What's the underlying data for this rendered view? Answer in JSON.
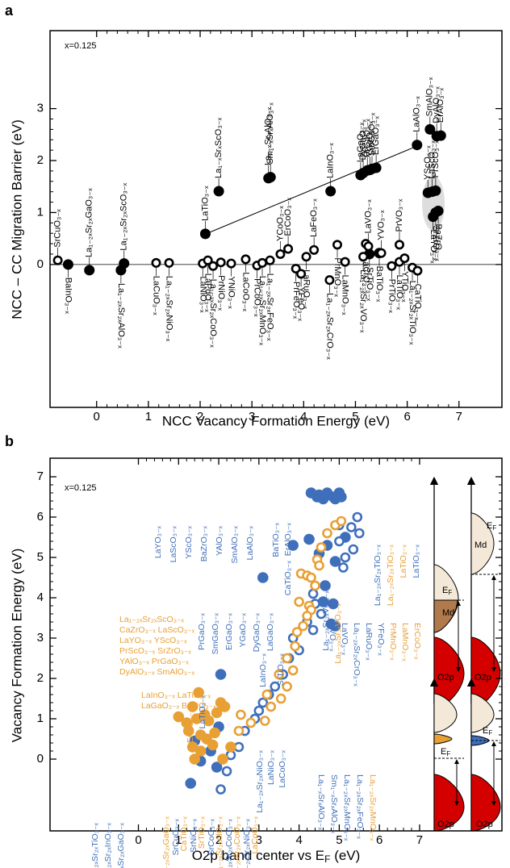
{
  "chart_data": [
    {
      "type": "scatter",
      "panel_label": "a",
      "annotation": "x=0.125",
      "xlabel": "NCC Vacancy Formation Energy (eV)",
      "ylabel": "NCC – CC Migration Barrier (eV)",
      "xlim": [
        -0.9,
        7.83
      ],
      "ylim": [
        -2.75,
        4.5
      ],
      "xticks": [
        0,
        1,
        2,
        3,
        4,
        5,
        6,
        7
      ],
      "yticks": [
        0,
        1,
        2,
        3
      ],
      "series": [
        {
          "marker": "filled",
          "color": "#000000",
          "x": [
            -0.55,
            -0.14,
            0.53,
            0.47,
            2.1,
            2.36,
            3.32,
            3.36,
            4.52,
            5.1,
            5.15,
            5.23,
            5.28,
            5.32,
            5.4,
            6.19,
            6.44,
            6.57,
            6.65,
            6.4,
            6.48,
            6.55,
            6.5,
            6.55,
            6.6,
            5.27,
            5.46
          ],
          "values": [
            0.0,
            -0.11,
            0.02,
            -0.11,
            0.59,
            1.41,
            1.66,
            1.68,
            1.41,
            1.72,
            1.76,
            1.81,
            1.82,
            1.84,
            1.86,
            2.3,
            2.6,
            2.47,
            2.48,
            1.38,
            1.4,
            1.42,
            0.92,
            1.0,
            1.03,
            0.2,
            0.22
          ],
          "labels": [
            "BaInO₃₋ₓ",
            "La₁₋₂ₓSr₂ₓGaO₃₋ₓ",
            "La₁₋₂ₓSr₂ₓScO₃₋ₓ",
            "La₁₋₂ₓSr₂ₓAlO₃₋ₓ",
            "LaTiO₃₋ₓ",
            "La₁₋ₓSrₓScO₃₋ₓ",
            "La₁₋ₓSrₓAlO₃₋ₓ",
            "Sm₁₋ₓSrₓAlO₃₋ₓ",
            "LaInO₃₋ₓ",
            "LaGaO₃₋ₓ",
            "DyGaO₃₋ₓ",
            "PrGaO₃₋ₓ",
            "YGaO₃₋ₓ",
            "SmGaO₃₋ₓ",
            "ErGaO₃₋ₓ",
            "LaAlO₃₋ₓ",
            "SmAlO₃₋ₓ",
            "DyAlO₃₋ₓ",
            "ErAlO₃₋ₓ",
            "YScO₃₋ₓ",
            "LaScO₃₋ₓ",
            "PrScO₃₋ₓ",
            "LaYO₃₋ₓ",
            "SrZrO₃₋ₓ",
            "BaZrO₃₋ₓ",
            "SrTiO₃₋ₓ",
            "BaTiO₃₋ₓ"
          ]
        },
        {
          "marker": "open",
          "color": "#000000",
          "x": [
            -0.75,
            1.15,
            1.4,
            2.05,
            2.15,
            2.25,
            2.4,
            2.6,
            2.88,
            3.1,
            3.2,
            3.35,
            3.55,
            3.7,
            4.2,
            3.85,
            3.95,
            4.05,
            4.5,
            4.65,
            4.8,
            5.15,
            5.2,
            5.25,
            5.5,
            5.85,
            5.7,
            5.85,
            5.95,
            6.1,
            6.2
          ],
          "values": [
            0.08,
            0.03,
            0.03,
            0.02,
            0.08,
            -0.03,
            0.04,
            0.02,
            0.1,
            -0.02,
            0.03,
            0.08,
            0.2,
            0.3,
            0.28,
            -0.08,
            -0.18,
            0.15,
            -0.3,
            0.38,
            0.05,
            0.15,
            0.4,
            0.35,
            0.22,
            0.38,
            -0.03,
            0.05,
            0.12,
            -0.06,
            -0.12
          ],
          "labels": [
            "SrCuO₃₋ₓ",
            "LaCuO₃₋ₓ",
            "La₁₋₂ₓSr₂ₓNiO₃₋ₓ",
            "LaNiO₃₋ₓ",
            "LaPdO₃₋ₓ",
            "La₁₋₂ₓSr₂ₓCoO₃₋ₓ",
            "PrNiO₃₋ₓ",
            "YNiO₃₋ₓ",
            "LaCoO₃₋ₓ",
            "PrCoO₃₋ₓ",
            "La₁₋₂ₓSr₂ₓMnO₃₋ₓ",
            "La₁₋₂ₓSr₂ₓFeO₃₋ₓ",
            "YCoO₃₋ₓ",
            "ErCoO₃₋ₓ",
            "LaFeO₃₋ₓ",
            "PrFeO₃₋ₓ",
            "YFeO₃₋ₓ",
            "LaRuO₃₋ₓ",
            "La₁₋₂ₓSr₂ₓCrO₃₋ₓ",
            "PrMnO₃₋ₓ",
            "LaMnO₃₋ₓ",
            "La₁₋₂ₓSr₂ₓVO₃₋ₓ",
            "LaCrO₃₋ₓ",
            "LaVO₃₋ₓ",
            "YVO₃₋ₓ",
            "PrVO₃₋ₓ",
            "PrTiO₃₋ₓ",
            "LaTiO₃₋ₓ",
            "YTiO₃₋ₓ",
            "La₁₋₂ₓSr₂ₓTiO₃₋ₓ",
            "CaTiO₃₋ₓ"
          ]
        }
      ]
    },
    {
      "type": "scatter",
      "panel_label": "b",
      "annotation": "x=0.125",
      "xlabel": "O2p band center vs E",
      "xlabel_sub": "F",
      "xlabel_unit": " (eV)",
      "ylabel": "Vacancy Formation Energy (eV)",
      "xlim": [
        -2.2,
        9.05
      ],
      "ylim": [
        -1.78,
        7.46
      ],
      "xticks": [
        0,
        1,
        2,
        3,
        4,
        5,
        6,
        7
      ],
      "yticks": [
        0,
        1,
        2,
        3,
        4,
        5,
        6,
        7
      ],
      "series": [
        {
          "marker": "filled",
          "color": "#3f6fba",
          "x": [
            4.3,
            4.45,
            4.5,
            4.6,
            4.7,
            4.85,
            5.0,
            5.05,
            4.9,
            3.85,
            4.25,
            4.5,
            4.7,
            4.9,
            5.15,
            3.1,
            4.65,
            4.85,
            4.9,
            4.8,
            4.6,
            2.05,
            1.4,
            1.55,
            1.95,
            1.3,
            1.8,
            2.0
          ],
          "values": [
            6.6,
            6.5,
            6.55,
            6.45,
            6.6,
            6.5,
            6.6,
            6.5,
            6.45,
            5.3,
            5.45,
            5.1,
            5.3,
            4.9,
            5.5,
            4.5,
            4.3,
            3.85,
            3.3,
            3.35,
            3.9,
            2.1,
            0.45,
            -0.05,
            -0.2,
            -0.6,
            0.2,
            0.8
          ]
        },
        {
          "marker": "open",
          "color": "#3f6fba",
          "x": [
            5.0,
            5.3,
            5.45,
            5.5,
            5.35,
            5.0,
            5.15,
            5.1,
            4.35,
            4.4,
            4.55,
            4.2,
            4.35,
            3.85,
            4.0,
            3.75,
            3.6,
            3.4,
            3.25,
            3.1,
            2.9,
            2.65,
            2.5,
            2.3,
            2.2,
            2.05,
            3.0
          ],
          "values": [
            5.8,
            5.75,
            6.0,
            5.6,
            5.2,
            5.4,
            5.0,
            4.75,
            4.1,
            3.85,
            3.6,
            3.4,
            3.2,
            3.0,
            2.7,
            2.5,
            2.1,
            1.8,
            1.6,
            1.4,
            1.0,
            0.7,
            0.3,
            0.1,
            -0.3,
            -0.75,
            1.2
          ]
        },
        {
          "marker": "filled",
          "color": "#e8a034",
          "x": [
            1.5,
            1.35,
            1.0,
            1.2,
            1.45,
            1.65,
            1.75,
            1.95,
            2.05,
            2.15,
            1.9,
            1.7,
            1.55,
            1.35,
            1.55,
            2.1,
            2.3,
            1.25,
            1.85,
            1.4
          ],
          "values": [
            1.65,
            1.3,
            1.05,
            0.9,
            1.0,
            1.1,
            0.95,
            1.15,
            1.4,
            1.3,
            0.65,
            0.5,
            0.6,
            0.3,
            0.2,
            0.0,
            0.3,
            0.7,
            0.35,
            0.0
          ]
        },
        {
          "marker": "open",
          "color": "#e8a034",
          "x": [
            4.05,
            4.2,
            4.3,
            4.4,
            4.45,
            4.55,
            4.7,
            4.9,
            5.05,
            4.25,
            4.1,
            4.3,
            4.2,
            3.95,
            3.9,
            3.7,
            3.85,
            3.5,
            3.7,
            3.2,
            3.3,
            3.15,
            2.8,
            2.5,
            2.55,
            3.55,
            4.0,
            4.5
          ],
          "values": [
            4.6,
            4.55,
            4.5,
            4.3,
            4.95,
            5.25,
            5.6,
            5.8,
            5.9,
            3.8,
            3.3,
            3.7,
            3.55,
            3.15,
            2.8,
            2.5,
            2.2,
            2.1,
            1.8,
            1.6,
            1.3,
            0.95,
            0.9,
            0.7,
            1.1,
            1.5,
            3.9,
            4.8
          ]
        }
      ],
      "label_groups": [
        {
          "color": "#3f6fba",
          "texts": [
            "LaYO₃₋ₓ",
            "LaScO₃₋ₓ",
            "YScO₃₋ₓ",
            "BaZrO₃₋ₓ",
            "YAlO₃₋ₓ",
            "SmAlO₃₋ₓ",
            "LaAlO₃₋ₓ"
          ]
        },
        {
          "color": "#3f6fba",
          "texts": [
            "PrGaO₃₋ₓ",
            "SmGaO₃₋ₓ",
            "ErGaO₃₋ₓ",
            "YGaO₃₋ₓ",
            "DyGaO₃₋ₓ",
            "LaGaO₃₋ₓ"
          ]
        },
        {
          "color": "#3f6fba",
          "texts": [
            "BaTiO₃₋ₓ",
            "ErAlO₃₋ₓ"
          ]
        },
        {
          "color": "#3f6fba",
          "texts": [
            "CaTiO₃₋ₓ"
          ]
        },
        {
          "color": "#3f6fba",
          "texts": [
            "LaInO₃₋ₓ",
            "SrTiO₃₋ₓ"
          ]
        },
        {
          "color": "#3f6fba",
          "texts": [
            "La₁₋₂ₓSr₂ₓNiO₃₋ₓ",
            "LaNiO₃₋ₓ",
            "LaCoO₃₋ₓ"
          ]
        },
        {
          "color": "#3f6fba",
          "texts": [
            "La₁₋ₓSrₓAlO₃₋ₓ",
            "Sm₁₋ₓSrₓAlO₃₋ₓ",
            "La₁₋₂ₓSr₂ₓMnO₃₋ₓ",
            "La₁₋₂ₓSr₂ₓFeO₃₋ₓ"
          ]
        },
        {
          "color": "#e8a034",
          "texts": [
            "La₁₋₂ₓSr₂ₓMnO₃₋ₓ"
          ]
        },
        {
          "color": "#3f6fba",
          "texts": [
            "YVO₃₋ₓ",
            "LaVO₃₋ₓ",
            "La₁₋₂ₓSr₂ₓCrO₃₋ₓ",
            "LaRuO₃₋ₓ",
            "YFeO₃₋ₓ"
          ]
        },
        {
          "color": "#e8a034",
          "texts": [
            "PrMnO₃₋ₓ",
            "LaMnO₃₋ₓ",
            "ErCoO₃₋ₓ"
          ]
        },
        {
          "color": "#3f6fba",
          "texts": [
            "La₁₋₂ₓSr₂ₓTiO₃₋ₓ",
            "LaTiO₃₋ₓ"
          ]
        },
        {
          "color": "#e8a034",
          "texts": [
            "La₁₋₂ₓSr₂ₓTiO₃₋ₓ",
            "LaTiO₃₋ₓ"
          ]
        },
        {
          "color": "#3f6fba",
          "texts": [
            "La₁₋₂ₓSr₂ₓTiO₃₋ₓ",
            "La₁₋₂ₓSr₂ₓInO₃₋ₓ",
            "La₁₋₂ₓSr₂ₓGaO₃₋ₓ"
          ]
        },
        {
          "color": "#e8a034",
          "texts": [
            "La₁₋₂ₓSr₂ₓScO₃₋ₓ",
            "CaZrO₃₋ₓ LaScO₃₋ₓ",
            "LaYO₃₋ₓ YScO₃₋ₓ",
            "PrScO₃₋ₓ SrZrO₃₋ₓ",
            "YAlO₃₋ₓ PrGaO₃₋ₓ",
            "DyAlO₃₋ₓ SmAlO₃₋ₓ"
          ]
        },
        {
          "color": "#e8a034",
          "texts": [
            "LaInO₃₋ₓ LaTiO₃₋ₓ",
            "LaGaO₃₋ₓ BaTiO₃₋ₓ"
          ]
        },
        {
          "color": "#e8a034",
          "texts": [
            "ErAlO₃₋ₓ"
          ]
        },
        {
          "color": "#3f6fba",
          "texts": [
            "LaTiO₃₋ₓ"
          ]
        },
        {
          "color": "#e8a034",
          "texts": [
            "La₁₋₂ₓSr₂ₓGaO₃₋ₓ",
            "CaTiO₃₋ₓ",
            "SrTiO₃₋ₓ",
            "La₁₋₂ₓSr₂ₓAlO₃₋ₓ",
            "La₁₋₂ₓSr₂ₓCoO₃₋ₓ",
            "LaCoO₃₋ₓ"
          ]
        },
        {
          "color": "#3f6fba",
          "texts": [
            "SrCuO₃₋ₓ",
            "SrNiO₃₋ₓ",
            "SrCoO₃₋ₓ",
            "La₁₋₂ₓSr₂ₓCoO₃₋ₓ",
            "La₁₋₂ₓSr₂ₓNiO₃₋ₓ"
          ]
        },
        {
          "color": "#3f6fba",
          "texts": [
            "La₁₋₂ₓSr₂ₓVO₃₋ₓ"
          ]
        },
        {
          "color": "#e8a034",
          "texts": [
            "La₁₋₂ₓSr₂ₓVO₃₋ₓ"
          ]
        }
      ],
      "band_diagram": {
        "md": "Md",
        "e": "E",
        "f": "F",
        "o2p": "O2p"
      }
    }
  ]
}
